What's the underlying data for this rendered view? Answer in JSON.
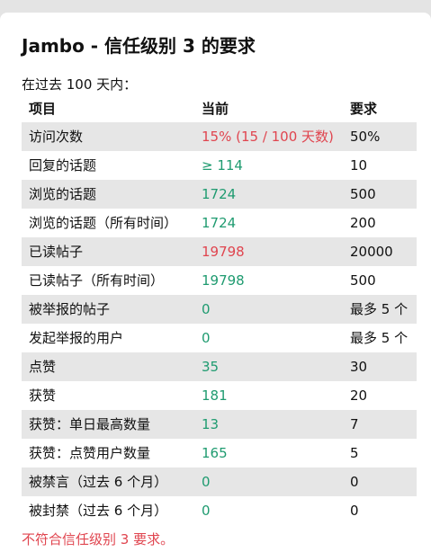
{
  "title": "Jambo - 信任级别 3 的要求",
  "subtitle": "在过去 100 天内：",
  "table": {
    "headers": [
      "项目",
      "当前",
      "要求"
    ],
    "rows": [
      {
        "item": "访问次数",
        "current": "15% (15 / 100 天数)",
        "required": "50%",
        "status": "bad"
      },
      {
        "item": "回复的话题",
        "current": "≥ 114",
        "required": "10",
        "status": "ok"
      },
      {
        "item": "浏览的话题",
        "current": "1724",
        "required": "500",
        "status": "ok"
      },
      {
        "item": "浏览的话题（所有时间）",
        "current": "1724",
        "required": "200",
        "status": "ok"
      },
      {
        "item": "已读帖子",
        "current": "19798",
        "required": "20000",
        "status": "bad"
      },
      {
        "item": "已读帖子（所有时间）",
        "current": "19798",
        "required": "500",
        "status": "ok"
      },
      {
        "item": "被举报的帖子",
        "current": "0",
        "required": "最多 5 个",
        "status": "ok"
      },
      {
        "item": "发起举报的用户",
        "current": "0",
        "required": "最多 5 个",
        "status": "ok"
      },
      {
        "item": "点赞",
        "current": "35",
        "required": "30",
        "status": "ok"
      },
      {
        "item": "获赞",
        "current": "181",
        "required": "20",
        "status": "ok"
      },
      {
        "item": "获赞：单日最高数量",
        "current": "13",
        "required": "7",
        "status": "ok"
      },
      {
        "item": "获赞：点赞用户数量",
        "current": "165",
        "required": "5",
        "status": "ok"
      },
      {
        "item": "被禁言（过去 6 个月）",
        "current": "0",
        "required": "0",
        "status": "ok"
      },
      {
        "item": "被封禁（过去 6 个月）",
        "current": "0",
        "required": "0",
        "status": "ok"
      }
    ]
  },
  "footer": "不符合信任级别 3 要求。",
  "colors": {
    "ok": "#1f9b70",
    "bad": "#e0454f",
    "row_shade": "#e6e6e6",
    "background": "#e4e4e4"
  }
}
